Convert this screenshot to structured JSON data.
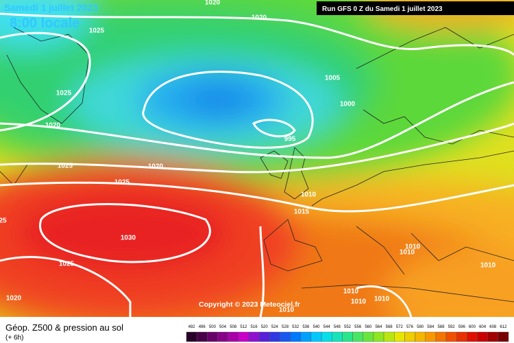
{
  "header": {
    "date": "Samedi 1 juillet 2023",
    "time": "8:00 locale",
    "run": "Run GFS 0 Z du Samedi 1 juillet 2023"
  },
  "isobar_labels": [
    "1020",
    "1020",
    "1025",
    "1025",
    "1020",
    "1005",
    "1000",
    "995",
    "1025",
    "1020",
    "1025",
    "1010",
    "1015",
    "1030",
    "1025",
    "1010",
    "1010",
    "1010",
    "1020",
    "1010",
    "1010",
    "1010",
    "1010",
    "25"
  ],
  "copyright": "Copyright © 2023 Meteociel.fr",
  "footer": {
    "title": "Géop. Z500 & pression au sol",
    "subtitle": "(+ 6h)"
  },
  "legend": {
    "labels": [
      "492",
      "496",
      "500",
      "504",
      "508",
      "512",
      "516",
      "520",
      "524",
      "528",
      "532",
      "536",
      "540",
      "544",
      "548",
      "552",
      "556",
      "560",
      "564",
      "568",
      "572",
      "576",
      "580",
      "584",
      "588",
      "592",
      "596",
      "600",
      "604",
      "608",
      "612"
    ]
  }
}
